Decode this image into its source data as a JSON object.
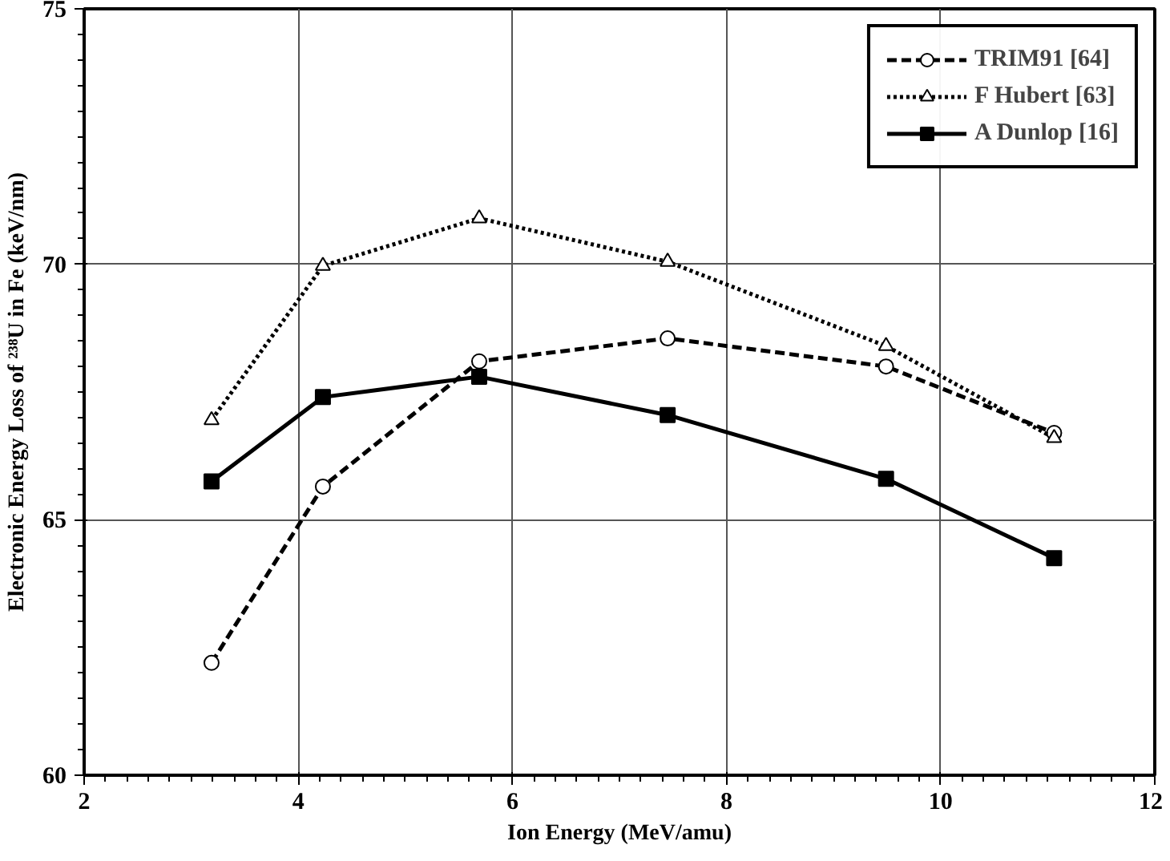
{
  "chart_data": {
    "type": "line",
    "xlabel": "Ion Energy (MeV/amu)",
    "ylabel": "Electronic Energy Loss of ²³⁸U in Fe (keV/nm)",
    "x": [
      3.19,
      4.23,
      5.69,
      7.45,
      9.49,
      11.06
    ],
    "xlim": [
      2,
      12
    ],
    "xticks": [
      2,
      4,
      6,
      8,
      10,
      12
    ],
    "ylim": [
      60,
      75
    ],
    "yticks": [
      60,
      65,
      70,
      75
    ],
    "grid": true,
    "legend": "top right",
    "series": [
      {
        "name": "TRIM91 [64]",
        "color": "#000000",
        "marker": "circle",
        "line_style": "dashed",
        "values": [
          62.2,
          65.65,
          68.1,
          68.55,
          68.0,
          66.7
        ]
      },
      {
        "name": "F Hubert [63]",
        "color": "#000000",
        "marker": "triangle",
        "line_style": "dotted",
        "values": [
          66.95,
          69.97,
          70.9,
          70.05,
          68.4,
          66.6
        ]
      },
      {
        "name": "A Dunlop [16]",
        "color": "#000000",
        "marker": "square",
        "line_style": "solid",
        "values": [
          65.75,
          67.4,
          67.8,
          67.05,
          65.8,
          64.25
        ]
      }
    ]
  }
}
